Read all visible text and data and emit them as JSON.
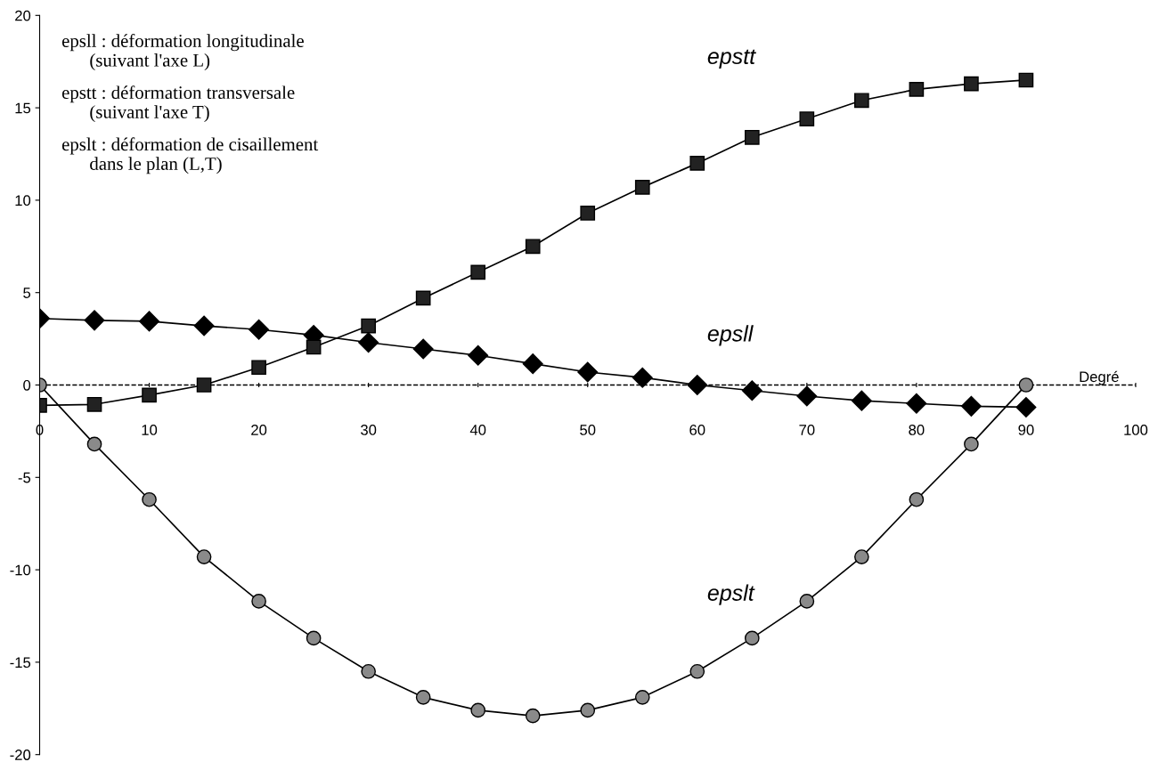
{
  "chart_data": {
    "type": "line",
    "xlabel": "Degré",
    "x": [
      0,
      5,
      10,
      15,
      20,
      25,
      30,
      35,
      40,
      45,
      50,
      55,
      60,
      65,
      70,
      75,
      80,
      85,
      90
    ],
    "series": [
      {
        "name": "epsll",
        "color": "#000000",
        "marker": "diamond",
        "values": [
          3.6,
          3.5,
          3.45,
          3.2,
          3.0,
          2.7,
          2.3,
          1.95,
          1.6,
          1.15,
          0.7,
          0.4,
          0,
          -0.3,
          -0.6,
          -0.85,
          -1.0,
          -1.15,
          -1.2
        ]
      },
      {
        "name": "epstt",
        "color": "#222222",
        "marker": "square",
        "values": [
          -1.1,
          -1.05,
          -0.55,
          0,
          0.95,
          2.05,
          3.2,
          4.7,
          6.1,
          7.5,
          9.3,
          10.7,
          12.0,
          13.4,
          14.4,
          15.4,
          16.0,
          16.3,
          16.5
        ]
      },
      {
        "name": "epslt",
        "color": "#8a8a8a",
        "marker": "circle",
        "values": [
          0,
          -3.2,
          -6.2,
          -9.3,
          -11.7,
          -13.7,
          -15.5,
          -16.9,
          -17.6,
          -17.9,
          -17.6,
          -16.9,
          -15.5,
          -13.7,
          -11.7,
          -9.3,
          -6.2,
          -3.2,
          0
        ]
      }
    ],
    "annotations": [
      "epsll : déformation longitudinale\n      (suivant l'axe L)",
      "epstt : déformation transversale\n      (suivant l'axe T)",
      "epslt : déformation de cisaillement\n      dans le plan (L,T)"
    ],
    "xlim": [
      0,
      100
    ],
    "xticks": [
      0,
      10,
      20,
      30,
      40,
      50,
      60,
      70,
      80,
      90,
      100
    ],
    "ylim": [
      -20,
      20
    ],
    "yticks": [
      -20,
      -15,
      -10,
      -5,
      0,
      5,
      10,
      15,
      20
    ],
    "ref_lines": [
      {
        "axis": "y",
        "value": 0,
        "color": "#000000",
        "line_style": "dashed"
      }
    ],
    "grid": false,
    "legend": false,
    "line_style": "solid"
  }
}
